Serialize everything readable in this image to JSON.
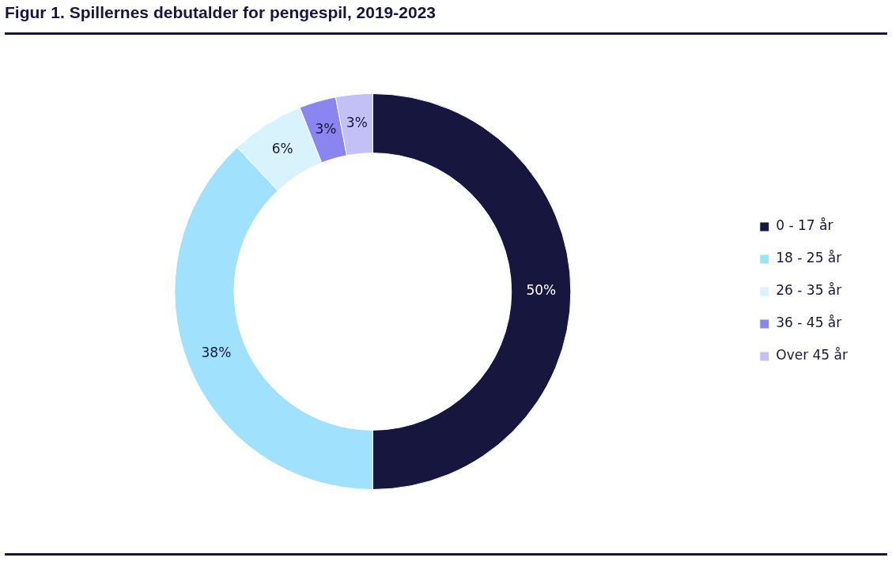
{
  "chart_data": {
    "type": "donut",
    "title": "Figur 1. Spillernes debutalder for pengespil, 2019-2023",
    "categories": [
      "0 - 17 år",
      "18 - 25 år",
      "26 - 35 år",
      "36 - 45 år",
      "Over 45 år"
    ],
    "values": [
      50,
      38,
      6,
      3,
      3
    ],
    "colors": [
      "#16163f",
      "#a0e1fd",
      "#d9f3fd",
      "#8b85ef",
      "#c2c0f7"
    ],
    "value_labels": [
      "50%",
      "38%",
      "6%",
      "3%",
      "3%"
    ],
    "legend": "right"
  }
}
